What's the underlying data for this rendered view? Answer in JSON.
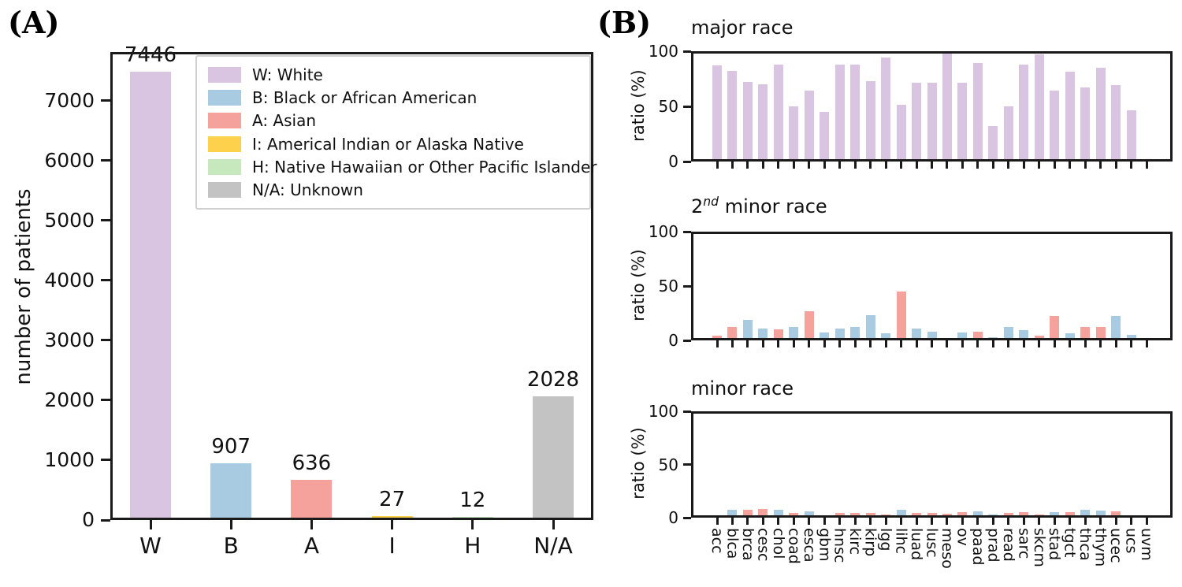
{
  "figure": {
    "panel_a_label": "(A)",
    "panel_b_label": "(B)"
  },
  "palette": {
    "white_purple": "#d9c5e2",
    "black_blue": "#a9cbe2",
    "asian_red": "#f5a29d",
    "indian_yellow": "#fdd14b",
    "hawaiian_green": "#c7e7bd",
    "unknown_gray": "#c3c3c3",
    "axis_black": "#1a1a1a"
  },
  "legend": {
    "items": [
      {
        "color": "#d9c5e2",
        "label": "W: White"
      },
      {
        "color": "#a9cbe2",
        "label": "B: Black or African American"
      },
      {
        "color": "#f5a29d",
        "label": "A: Asian"
      },
      {
        "color": "#fdd14b",
        "label": "I: Americal Indian or Alaska Native"
      },
      {
        "color": "#c7e7bd",
        "label": "H: Native Hawaiian or Other Pacific Islander"
      },
      {
        "color": "#c3c3c3",
        "label": "N/A: Unknown"
      }
    ]
  },
  "chart_data": [
    {
      "id": "patients_by_race",
      "panel": "A",
      "type": "bar",
      "title": "",
      "ylabel": "number of patients",
      "categories": [
        "W",
        "B",
        "A",
        "I",
        "H",
        "N/A"
      ],
      "values": [
        7446,
        907,
        636,
        27,
        12,
        2028
      ],
      "bar_labels": [
        "7446",
        "907",
        "636",
        "27",
        "12",
        "2028"
      ],
      "bar_colors": [
        "#d9c5e2",
        "#a9cbe2",
        "#f5a29d",
        "#fdd14b",
        "#c7e7bd",
        "#c3c3c3"
      ],
      "yticks": [
        0,
        1000,
        2000,
        3000,
        4000,
        5000,
        6000,
        7000
      ],
      "ylim": [
        0,
        7815
      ],
      "grid": false,
      "legend_position": "upper right inside",
      "show_xlabels": true
    },
    {
      "id": "major_race_ratio",
      "panel": "B",
      "type": "bar",
      "title": "major race",
      "title_parts": {
        "base": "major race",
        "sup": "",
        "rest": ""
      },
      "ylabel": "ratio (%)",
      "categories": [
        "acc",
        "blca",
        "brca",
        "cesc",
        "chol",
        "coad",
        "esca",
        "gbm",
        "hnsc",
        "kirc",
        "kirp",
        "lgg",
        "lihc",
        "luad",
        "lusc",
        "meso",
        "ov",
        "paad",
        "prad",
        "read",
        "sarc",
        "skcm",
        "stad",
        "tgct",
        "thca",
        "thym",
        "ucec",
        "ucs",
        "uvm"
      ],
      "values": [
        85,
        80,
        70,
        68,
        86,
        48,
        62,
        43,
        86,
        86,
        71,
        92,
        49,
        69,
        69,
        97,
        69,
        87,
        30,
        48,
        86,
        95,
        62,
        79,
        65,
        83,
        67,
        44,
        0
      ],
      "bar_colors": [
        "#d9c5e2",
        "#d9c5e2",
        "#d9c5e2",
        "#d9c5e2",
        "#d9c5e2",
        "#d9c5e2",
        "#d9c5e2",
        "#d9c5e2",
        "#d9c5e2",
        "#d9c5e2",
        "#d9c5e2",
        "#d9c5e2",
        "#d9c5e2",
        "#d9c5e2",
        "#d9c5e2",
        "#d9c5e2",
        "#d9c5e2",
        "#d9c5e2",
        "#d9c5e2",
        "#d9c5e2",
        "#d9c5e2",
        "#d9c5e2",
        "#d9c5e2",
        "#d9c5e2",
        "#d9c5e2",
        "#d9c5e2",
        "#d9c5e2",
        "#d9c5e2",
        "none"
      ],
      "yticks": [
        0,
        50,
        100
      ],
      "ylim": [
        0,
        100
      ],
      "grid": false,
      "show_xlabels": false
    },
    {
      "id": "second_minor_race_ratio",
      "panel": "B",
      "type": "bar",
      "title": "2nd minor race",
      "title_parts": {
        "base": "2",
        "sup": "nd",
        "rest": " minor race"
      },
      "ylabel": "ratio (%)",
      "categories": [
        "acc",
        "blca",
        "brca",
        "cesc",
        "chol",
        "coad",
        "esca",
        "gbm",
        "hnsc",
        "kirc",
        "kirp",
        "lgg",
        "lihc",
        "luad",
        "lusc",
        "meso",
        "ov",
        "paad",
        "prad",
        "read",
        "sarc",
        "skcm",
        "stad",
        "tgct",
        "thca",
        "thym",
        "ucec",
        "ucs",
        "uvm"
      ],
      "values": [
        2,
        10,
        17,
        9,
        8,
        10,
        25,
        5,
        9,
        10,
        21,
        4,
        43,
        9,
        6,
        0,
        5,
        6,
        1,
        10,
        7,
        2,
        20,
        4,
        10,
        10,
        20,
        3,
        0
      ],
      "bar_colors": [
        "#f5a29d",
        "#f5a29d",
        "#a9cbe2",
        "#a9cbe2",
        "#f5a29d",
        "#a9cbe2",
        "#f5a29d",
        "#a9cbe2",
        "#a9cbe2",
        "#a9cbe2",
        "#a9cbe2",
        "#a9cbe2",
        "#f5a29d",
        "#a9cbe2",
        "#a9cbe2",
        "none",
        "#a9cbe2",
        "#f5a29d",
        "#a9cbe2",
        "#a9cbe2",
        "#a9cbe2",
        "#f5a29d",
        "#f5a29d",
        "#a9cbe2",
        "#f5a29d",
        "#f5a29d",
        "#a9cbe2",
        "#a9cbe2",
        "none"
      ],
      "yticks": [
        0,
        50,
        100
      ],
      "ylim": [
        0,
        100
      ],
      "grid": false,
      "show_xlabels": false
    },
    {
      "id": "minor_race_ratio",
      "panel": "B",
      "type": "bar",
      "title": "minor race",
      "title_parts": {
        "base": "minor race",
        "sup": "",
        "rest": ""
      },
      "ylabel": "ratio (%)",
      "categories": [
        "acc",
        "blca",
        "brca",
        "cesc",
        "chol",
        "coad",
        "esca",
        "gbm",
        "hnsc",
        "kirc",
        "kirp",
        "lgg",
        "lihc",
        "luad",
        "lusc",
        "meso",
        "ov",
        "paad",
        "prad",
        "read",
        "sarc",
        "skcm",
        "stad",
        "tgct",
        "thca",
        "thym",
        "ucec",
        "ucs",
        "uvm"
      ],
      "values": [
        0,
        5,
        5,
        6,
        5,
        2,
        4,
        0,
        2,
        2,
        2,
        1,
        5,
        2,
        2,
        1.5,
        3,
        4,
        0.5,
        2.5,
        3,
        1,
        3,
        3,
        5,
        4.5,
        3.5,
        0,
        0
      ],
      "bar_colors": [
        "none",
        "#a9cbe2",
        "#f5a29d",
        "#f5a29d",
        "#a9cbe2",
        "#f5a29d",
        "#a9cbe2",
        "none",
        "#f5a29d",
        "#f5a29d",
        "#f5a29d",
        "#f5a29d",
        "#a9cbe2",
        "#f5a29d",
        "#f5a29d",
        "#f5a29d",
        "#f5a29d",
        "#a9cbe2",
        "#a9cbe2",
        "#f5a29d",
        "#f5a29d",
        "#f5a29d",
        "#a9cbe2",
        "#f5a29d",
        "#a9cbe2",
        "#a9cbe2",
        "#f5a29d",
        "none",
        "none"
      ],
      "yticks": [
        0,
        50,
        100
      ],
      "ylim": [
        0,
        100
      ],
      "grid": false,
      "show_xlabels": true
    }
  ]
}
